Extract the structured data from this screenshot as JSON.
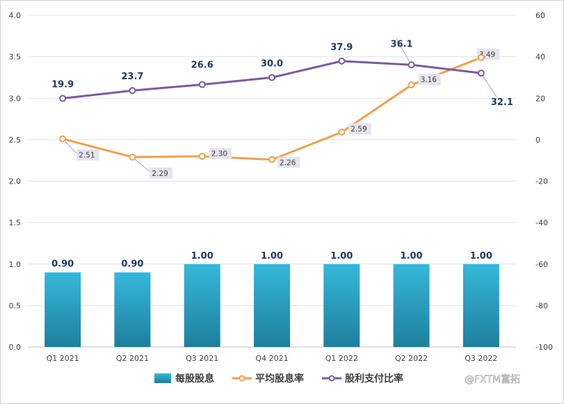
{
  "chart_data": {
    "type": "bar+line",
    "categories": [
      "Q1 2021",
      "Q2 2021",
      "Q3 2021",
      "Q4 2021",
      "Q1 2022",
      "Q2 2022",
      "Q3 2022"
    ],
    "series": [
      {
        "name": "每股股息",
        "type": "bar",
        "axis": "left",
        "color": "#2aa7c9",
        "values": [
          0.9,
          0.9,
          1.0,
          1.0,
          1.0,
          1.0,
          1.0
        ],
        "labels": [
          "0.90",
          "0.90",
          "1.00",
          "1.00",
          "1.00",
          "1.00",
          "1.00"
        ]
      },
      {
        "name": "平均股息率",
        "type": "line",
        "axis": "left",
        "color": "#f0a04b",
        "values": [
          2.51,
          2.29,
          2.3,
          2.26,
          2.59,
          3.16,
          3.49
        ],
        "labels": [
          "2.51",
          "2.29",
          "2.30",
          "2.26",
          "2.59",
          "3.16",
          "3.49"
        ]
      },
      {
        "name": "股利支付比率",
        "type": "line",
        "axis": "right",
        "color": "#7b5aa0",
        "values": [
          19.9,
          23.7,
          26.6,
          30.0,
          37.9,
          36.1,
          32.1
        ],
        "labels": [
          "19.9",
          "23.7",
          "26.6",
          "30.0",
          "37.9",
          "36.1",
          "32.1"
        ]
      }
    ],
    "y_left": {
      "range": [
        0,
        4.0
      ],
      "ticks": [
        "0.0",
        "0.5",
        "1.0",
        "1.5",
        "2.0",
        "2.5",
        "3.0",
        "3.5",
        "4.0"
      ]
    },
    "y_right": {
      "range": [
        -100,
        60
      ],
      "ticks": [
        "-100",
        "-80",
        "-60",
        "-40",
        "-20",
        "0",
        "20",
        "40",
        "60"
      ]
    },
    "grid": true,
    "legend_position": "bottom"
  },
  "watermark": "@FXTM富拓"
}
